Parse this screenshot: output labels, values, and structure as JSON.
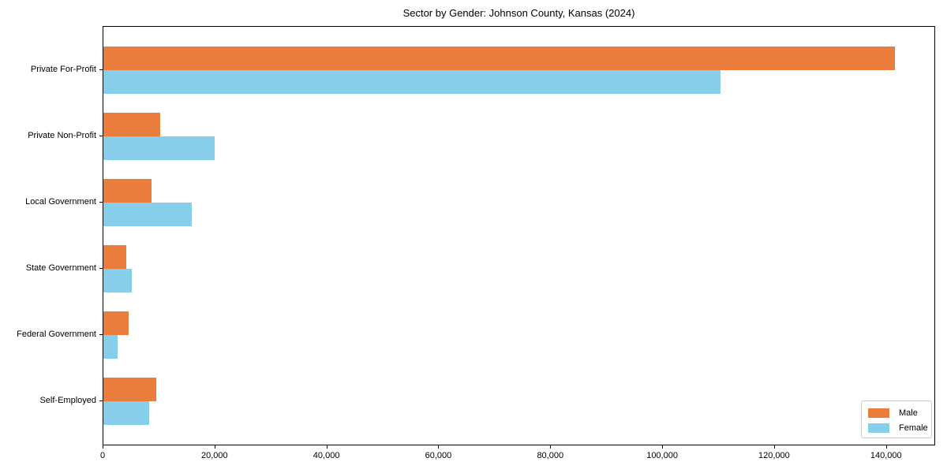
{
  "title": "Sector by Gender: Johnson County, Kansas (2024)",
  "chart_data": {
    "type": "bar",
    "orientation": "horizontal",
    "title": "Sector by Gender: Johnson County, Kansas (2024)",
    "categories": [
      "Private For-Profit",
      "Private Non-Profit",
      "Local Government",
      "State Government",
      "Federal Government",
      "Self-Employed"
    ],
    "series": [
      {
        "name": "Male",
        "color": "#EA7D3B",
        "values": [
          141500,
          10100,
          8600,
          4100,
          4500,
          9400
        ]
      },
      {
        "name": "Female",
        "color": "#87CEEB",
        "values": [
          110300,
          19900,
          15800,
          5100,
          2500,
          8200
        ]
      }
    ],
    "xlabel": "",
    "ylabel": "",
    "xlim": [
      0,
      148500
    ],
    "x_ticks": [
      0,
      20000,
      40000,
      60000,
      80000,
      100000,
      120000,
      140000
    ],
    "x_tick_labels": [
      "0",
      "20,000",
      "40,000",
      "60,000",
      "80,000",
      "100,000",
      "120,000",
      "140,000"
    ],
    "grid": false,
    "legend": {
      "position": "lower right",
      "entries": [
        "Male",
        "Female"
      ]
    }
  }
}
